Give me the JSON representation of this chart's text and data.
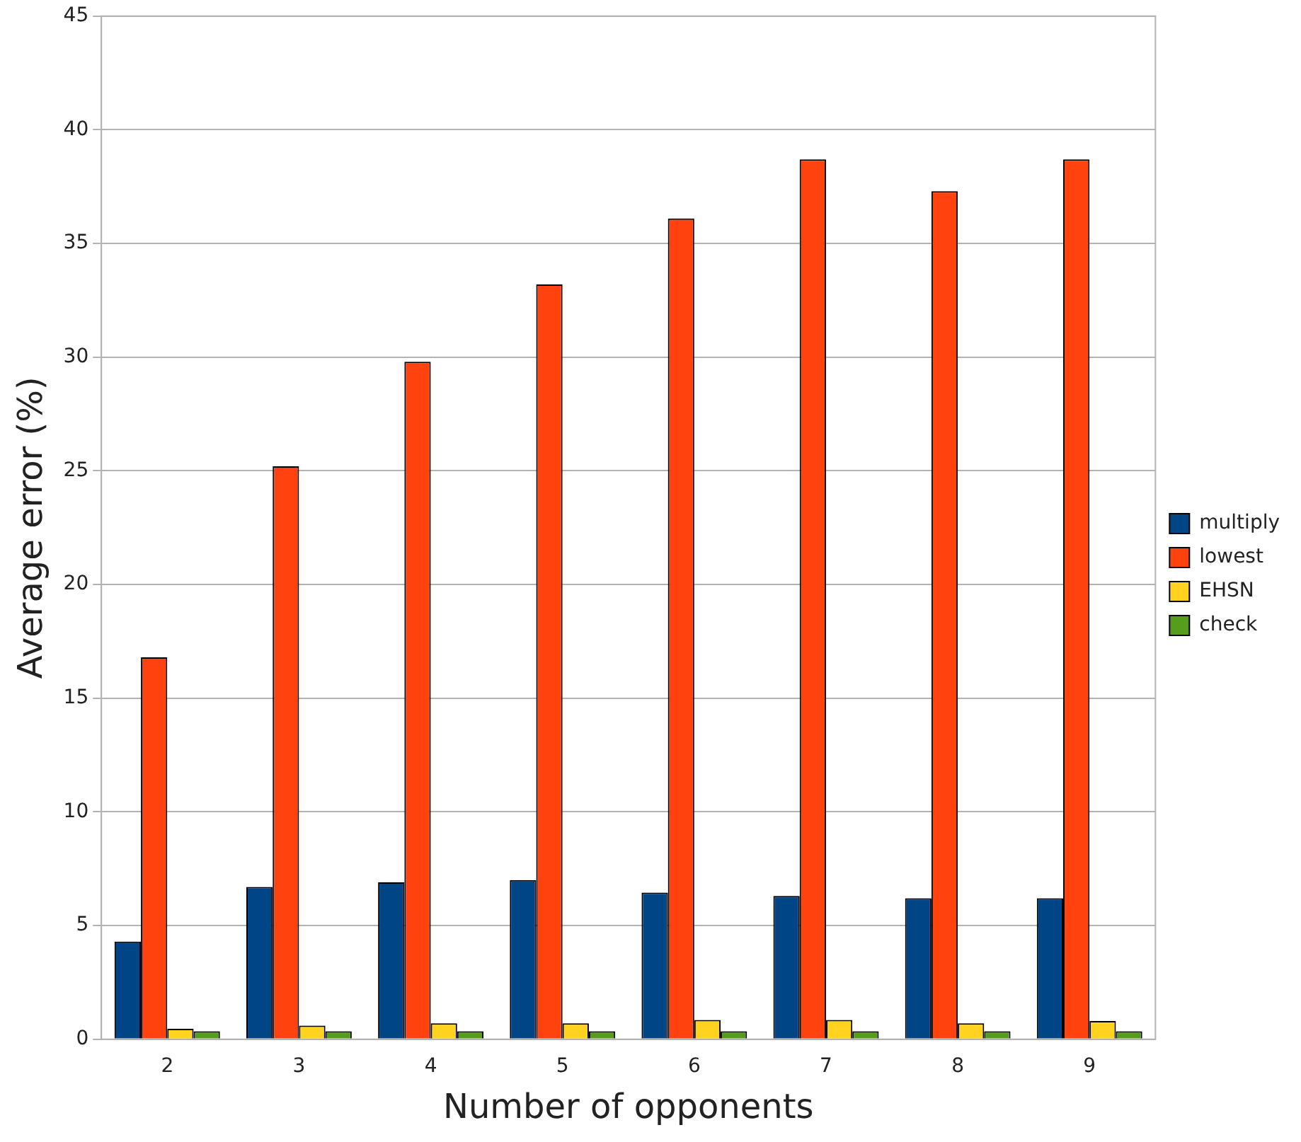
{
  "chart_data": {
    "type": "bar",
    "xlabel": "Number of opponents",
    "ylabel": "Average error (%)",
    "categories": [
      "2",
      "3",
      "4",
      "5",
      "6",
      "7",
      "8",
      "9"
    ],
    "series": [
      {
        "name": "multiply",
        "color": "#004586",
        "values": [
          4.3,
          6.7,
          6.9,
          7.0,
          6.45,
          6.3,
          6.2,
          6.2
        ]
      },
      {
        "name": "lowest",
        "color": "#ff420e",
        "values": [
          16.8,
          25.2,
          29.8,
          33.2,
          36.1,
          38.7,
          37.3,
          38.7
        ]
      },
      {
        "name": "EHSN",
        "color": "#ffd320",
        "values": [
          0.46,
          0.6,
          0.7,
          0.7,
          0.85,
          0.85,
          0.7,
          0.8
        ]
      },
      {
        "name": "check",
        "color": "#579d1c",
        "values": [
          0.35,
          0.35,
          0.35,
          0.35,
          0.35,
          0.35,
          0.35,
          0.35
        ]
      }
    ],
    "ylim": [
      0,
      45
    ],
    "yticks": [
      0,
      5,
      10,
      15,
      20,
      25,
      30,
      35,
      40,
      45
    ],
    "grid": "y",
    "legend": "right"
  }
}
